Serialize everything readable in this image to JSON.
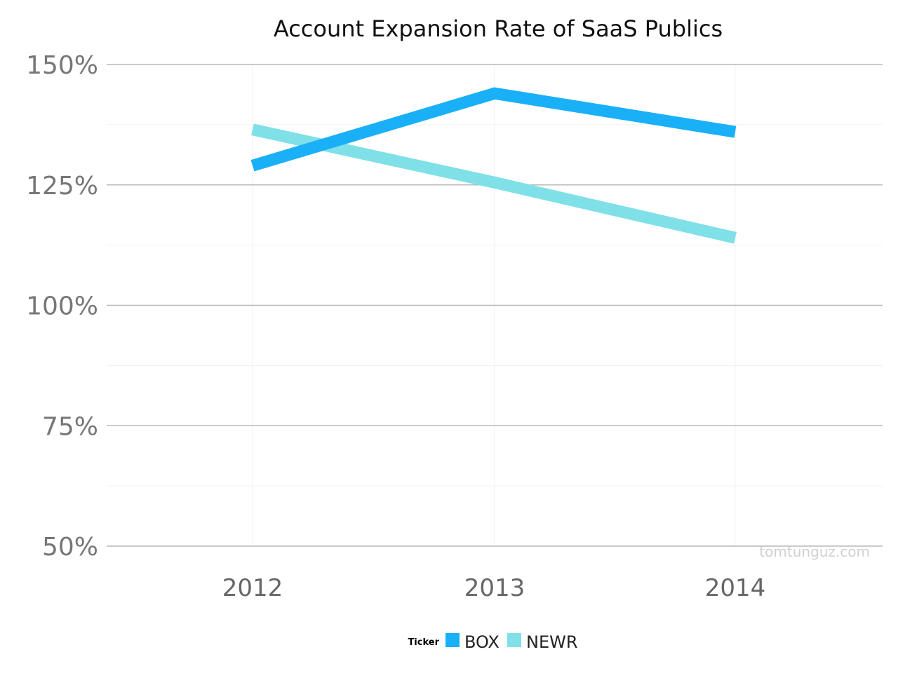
{
  "chart_data": {
    "type": "line",
    "title": "Account Expansion Rate of SaaS Publics",
    "xlabel": "",
    "ylabel": "",
    "categories": [
      "2012",
      "2013",
      "2014"
    ],
    "y_ticks": [
      "50%",
      "75%",
      "100%",
      "125%",
      "150%"
    ],
    "y_tick_values": [
      50,
      75,
      100,
      125,
      150
    ],
    "ylim": [
      50,
      150
    ],
    "grid": true,
    "series": [
      {
        "name": "BOX",
        "values": [
          129,
          144,
          136
        ],
        "color": "#1ab0f7"
      },
      {
        "name": "NEWR",
        "values": [
          136.5,
          125.5,
          114
        ],
        "color": "#7fe0e8"
      }
    ],
    "legend": {
      "title": "Ticker",
      "position": "bottom"
    },
    "watermark": "tomtunguz.com"
  }
}
